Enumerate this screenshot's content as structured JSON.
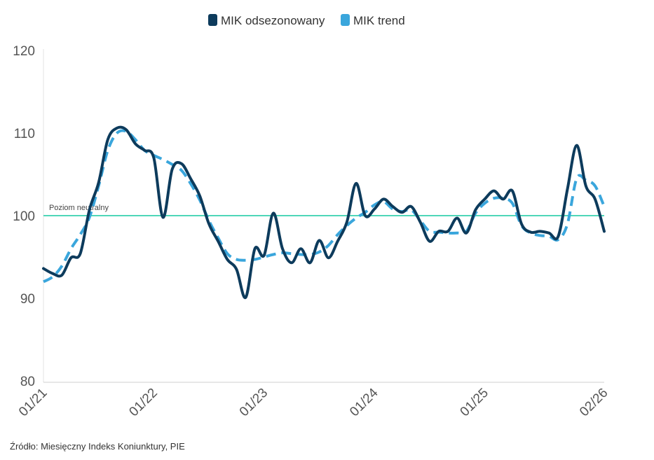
{
  "chart_data": {
    "type": "line",
    "title": "",
    "xlabel": "",
    "ylabel": "",
    "ylim": [
      80,
      120
    ],
    "yticks": [
      "80",
      "90",
      "100",
      "110",
      "120"
    ],
    "x_start": "01/21",
    "x_end": "02/26",
    "xtick_labels": [
      {
        "label": "01/21",
        "month_index": 0
      },
      {
        "label": "01/22",
        "month_index": 12
      },
      {
        "label": "01/23",
        "month_index": 24
      },
      {
        "label": "01/24",
        "month_index": 36
      },
      {
        "label": "01/25",
        "month_index": 48
      },
      {
        "label": "02/26",
        "month_index": 61
      }
    ],
    "legend_position": "top-center",
    "series": [
      {
        "name": "MIK odsezonowany",
        "color": "#0d3b5c",
        "style": "solid",
        "values": [
          93.6,
          93.0,
          92.8,
          94.9,
          95.4,
          100.7,
          104.0,
          109.2,
          110.6,
          110.4,
          108.7,
          107.9,
          107.0,
          99.8,
          105.6,
          106.3,
          104.5,
          102.4,
          99.0,
          96.9,
          94.7,
          93.5,
          90.1,
          96.0,
          95.2,
          100.3,
          96.0,
          94.3,
          96.0,
          94.3,
          97.0,
          94.9,
          96.9,
          99.2,
          103.9,
          100.0,
          100.8,
          102.0,
          101.1,
          100.4,
          101.1,
          99.2,
          96.9,
          98.1,
          98.1,
          99.7,
          97.9,
          100.7,
          102.0,
          103.0,
          102.0,
          103.0,
          99.0,
          98.0,
          98.1,
          97.9,
          97.5,
          103.2,
          108.5,
          103.6,
          102.0,
          98.1
        ]
      },
      {
        "name": "MIK trend",
        "color": "#3aa6dc",
        "style": "dashed",
        "values": [
          92.0,
          92.6,
          93.9,
          96.0,
          97.7,
          99.8,
          103.6,
          107.9,
          110.0,
          110.2,
          109.2,
          107.9,
          107.3,
          106.8,
          106.2,
          105.5,
          103.9,
          101.9,
          99.4,
          97.3,
          95.4,
          94.7,
          94.6,
          94.7,
          95.0,
          95.3,
          95.5,
          95.4,
          95.3,
          95.3,
          95.6,
          96.4,
          97.7,
          98.8,
          99.7,
          100.4,
          101.3,
          101.7,
          100.8,
          100.5,
          100.7,
          99.4,
          98.1,
          98.0,
          97.9,
          97.9,
          98.1,
          100.3,
          101.5,
          102.1,
          102.1,
          101.5,
          98.8,
          97.9,
          97.6,
          97.5,
          97.1,
          99.0,
          104.5,
          104.3,
          103.6,
          101.1
        ]
      }
    ],
    "reference_line": {
      "value": 100,
      "label": "Poziom neutralny",
      "color": "#4fd6b8"
    },
    "source": "Źródło: Miesięczny Indeks Koniunktury, PIE"
  }
}
